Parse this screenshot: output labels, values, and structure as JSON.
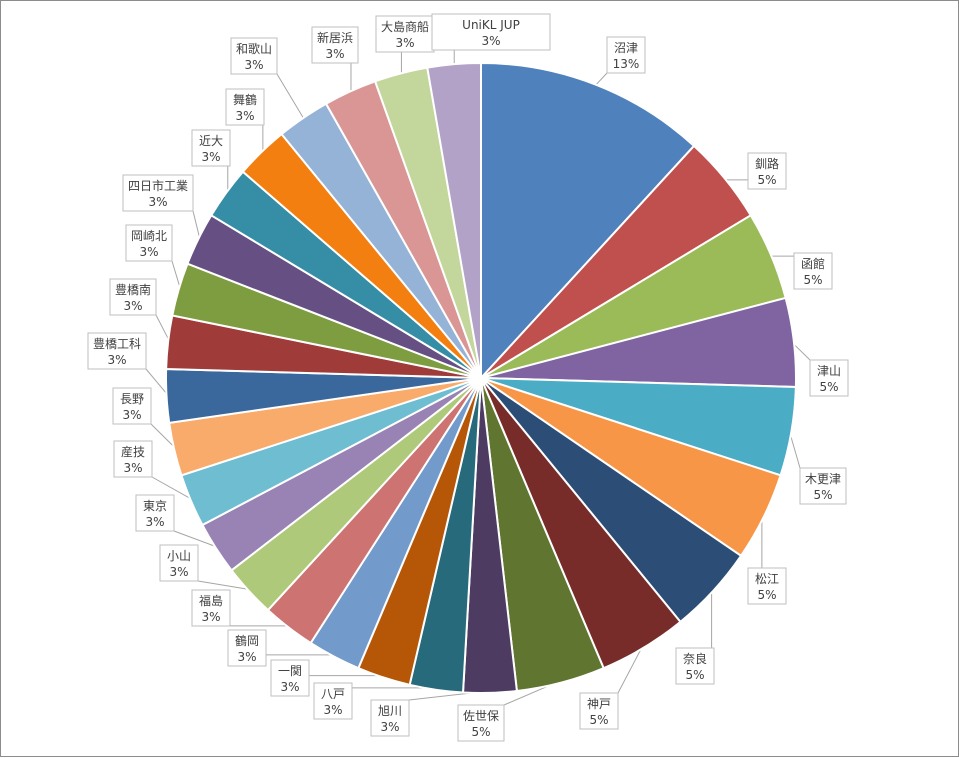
{
  "chart_data": {
    "type": "pie",
    "title": "",
    "unit": "%",
    "slices": [
      {
        "label": "沼津",
        "value": 13,
        "text": "13%",
        "color": "#4f81bd"
      },
      {
        "label": "釧路",
        "value": 5,
        "text": "5%",
        "color": "#c0504d"
      },
      {
        "label": "函館",
        "value": 5,
        "text": "5%",
        "color": "#9bbb59"
      },
      {
        "label": "津山",
        "value": 5,
        "text": "5%",
        "color": "#8064a2"
      },
      {
        "label": "木更津",
        "value": 5,
        "text": "5%",
        "color": "#4bacc6"
      },
      {
        "label": "松江",
        "value": 5,
        "text": "5%",
        "color": "#f79646"
      },
      {
        "label": "奈良",
        "value": 5,
        "text": "5%",
        "color": "#2c4d75"
      },
      {
        "label": "神戸",
        "value": 5,
        "text": "5%",
        "color": "#772c2a"
      },
      {
        "label": "佐世保",
        "value": 5,
        "text": "5%",
        "color": "#5f7530"
      },
      {
        "label": "旭川",
        "value": 3,
        "text": "3%",
        "color": "#4d3b62"
      },
      {
        "label": "八戸",
        "value": 3,
        "text": "3%",
        "color": "#276a7c"
      },
      {
        "label": "一関",
        "value": 3,
        "text": "3%",
        "color": "#b65708"
      },
      {
        "label": "鶴岡",
        "value": 3,
        "text": "3%",
        "color": "#729aca"
      },
      {
        "label": "福島",
        "value": 3,
        "text": "3%",
        "color": "#cd7371"
      },
      {
        "label": "小山",
        "value": 3,
        "text": "3%",
        "color": "#afc97a"
      },
      {
        "label": "東京",
        "value": 3,
        "text": "3%",
        "color": "#9983b5"
      },
      {
        "label": "産技",
        "value": 3,
        "text": "3%",
        "color": "#6fbdd1"
      },
      {
        "label": "長野",
        "value": 3,
        "text": "3%",
        "color": "#f9ab6b"
      },
      {
        "label": "豊橋工科",
        "value": 3,
        "text": "3%",
        "color": "#3a679c"
      },
      {
        "label": "豊橋南",
        "value": 3,
        "text": "3%",
        "color": "#9f3b38"
      },
      {
        "label": "岡崎北",
        "value": 3,
        "text": "3%",
        "color": "#7e9c40"
      },
      {
        "label": "四日市工業",
        "value": 3,
        "text": "3%",
        "color": "#664f83"
      },
      {
        "label": "近大",
        "value": 3,
        "text": "3%",
        "color": "#358ea6"
      },
      {
        "label": "舞鶴",
        "value": 3,
        "text": "3%",
        "color": "#f27f10"
      },
      {
        "label": "和歌山",
        "value": 3,
        "text": "3%",
        "color": "#95b3d7"
      },
      {
        "label": "新居浜",
        "value": 3,
        "text": "3%",
        "color": "#d99694"
      },
      {
        "label": "大島商船",
        "value": 3,
        "text": "3%",
        "color": "#c3d69b"
      },
      {
        "label": "UniKL JUP",
        "value": 3,
        "text": "3%",
        "color": "#b2a2c7"
      }
    ]
  }
}
